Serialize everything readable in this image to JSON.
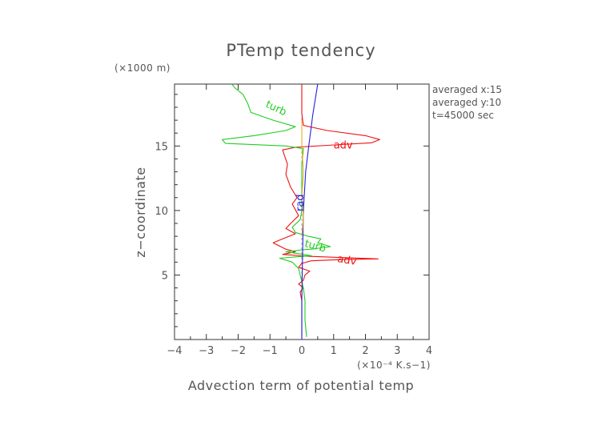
{
  "chart_data": {
    "type": "line",
    "title": "PTemp tendency",
    "xlabel": "Advection term of potential temp",
    "ylabel": "z−coordinate",
    "x_unit_label": "(×10⁻⁴ K.s−1)",
    "y_unit_label": "(×1000 m)",
    "xlim": [
      -4,
      4
    ],
    "ylim": [
      0,
      19.8
    ],
    "x_ticks": [
      -4,
      -3,
      -2,
      -1,
      0,
      1,
      2,
      3,
      4
    ],
    "x_tick_labels": [
      "−4",
      "−3",
      "−2",
      "−1",
      "0",
      "1",
      "2",
      "3",
      "4"
    ],
    "y_ticks": [
      5,
      10,
      15
    ],
    "y_tick_labels": [
      "5",
      "10",
      "15"
    ],
    "info_lines": [
      "averaged  x:15",
      "averaged  y:10",
      "t=45000 sec"
    ],
    "series": [
      {
        "name": "adv",
        "color": "#ee1111",
        "points": [
          [
            0.0,
            0.2
          ],
          [
            0.0,
            1.5
          ],
          [
            0.0,
            3.0
          ],
          [
            -0.05,
            3.7
          ],
          [
            0.05,
            4.0
          ],
          [
            -0.1,
            4.3
          ],
          [
            0.05,
            4.6
          ],
          [
            0.1,
            5.0
          ],
          [
            0.25,
            5.3
          ],
          [
            -0.1,
            5.6
          ],
          [
            0.0,
            5.9
          ],
          [
            0.3,
            6.1
          ],
          [
            1.3,
            6.2
          ],
          [
            2.4,
            6.25
          ],
          [
            1.3,
            6.35
          ],
          [
            0.2,
            6.45
          ],
          [
            -0.6,
            6.6
          ],
          [
            -0.2,
            6.8
          ],
          [
            -0.5,
            7.0
          ],
          [
            -0.9,
            7.5
          ],
          [
            -0.7,
            7.7
          ],
          [
            -0.2,
            8.2
          ],
          [
            -0.5,
            8.6
          ],
          [
            -0.35,
            9.0
          ],
          [
            -0.1,
            9.6
          ],
          [
            -0.3,
            10.5
          ],
          [
            -0.15,
            11.0
          ],
          [
            -0.35,
            11.8
          ],
          [
            -0.5,
            12.8
          ],
          [
            -0.45,
            13.6
          ],
          [
            -0.55,
            14.3
          ],
          [
            -0.6,
            14.7
          ],
          [
            -0.2,
            14.9
          ],
          [
            0.8,
            15.05
          ],
          [
            2.2,
            15.25
          ],
          [
            2.45,
            15.5
          ],
          [
            2.0,
            15.8
          ],
          [
            0.8,
            16.2
          ],
          [
            0.05,
            16.6
          ],
          [
            0.0,
            17.5
          ],
          [
            0.0,
            19.8
          ]
        ]
      },
      {
        "name": "turb",
        "color": "#22cc22",
        "points": [
          [
            0.15,
            0.2
          ],
          [
            0.1,
            1.5
          ],
          [
            0.1,
            3.0
          ],
          [
            0.05,
            4.0
          ],
          [
            0.0,
            4.5
          ],
          [
            -0.1,
            5.5
          ],
          [
            -0.3,
            6.0
          ],
          [
            -0.7,
            6.3
          ],
          [
            0.3,
            6.5
          ],
          [
            -0.5,
            6.8
          ],
          [
            0.0,
            6.95
          ],
          [
            0.3,
            7.0
          ],
          [
            0.9,
            7.2
          ],
          [
            0.5,
            7.5
          ],
          [
            0.6,
            7.8
          ],
          [
            0.2,
            8.0
          ],
          [
            -0.2,
            8.3
          ],
          [
            -0.3,
            8.7
          ],
          [
            -0.05,
            9.3
          ],
          [
            0.0,
            10.0
          ],
          [
            0.0,
            13.5
          ],
          [
            0.05,
            14.8
          ],
          [
            -0.5,
            15.0
          ],
          [
            -2.4,
            15.2
          ],
          [
            -2.5,
            15.5
          ],
          [
            -1.5,
            15.8
          ],
          [
            -0.5,
            16.2
          ],
          [
            -0.2,
            16.5
          ],
          [
            -0.9,
            17.0
          ],
          [
            -1.6,
            17.6
          ],
          [
            -1.7,
            18.3
          ],
          [
            -1.85,
            19.0
          ],
          [
            -2.1,
            19.5
          ],
          [
            -2.2,
            19.8
          ]
        ]
      },
      {
        "name": "rad",
        "color": "#2222dd",
        "points": [
          [
            0.0,
            0.0
          ],
          [
            0.0,
            3.0
          ],
          [
            0.02,
            6.0
          ],
          [
            0.05,
            10.0
          ],
          [
            0.12,
            13.0
          ],
          [
            0.22,
            15.0
          ],
          [
            0.35,
            17.5
          ],
          [
            0.5,
            19.8
          ]
        ]
      },
      {
        "name": "",
        "color": "#eeaa22",
        "points": [
          [
            0.0,
            8.0
          ],
          [
            0.05,
            9.5
          ],
          [
            0.0,
            11.0
          ],
          [
            0.05,
            13.0
          ],
          [
            0.0,
            15.0
          ],
          [
            0.0,
            17.0
          ]
        ]
      }
    ],
    "curve_labels": [
      {
        "text": "turb",
        "series": "turb",
        "x": -0.85,
        "y": 17.7,
        "rotate": 25
      },
      {
        "text": "adv",
        "series": "adv",
        "x": 1.3,
        "y": 14.8,
        "rotate": 0
      },
      {
        "text": "rad",
        "series": "rad",
        "x": 0.05,
        "y": 10.6,
        "rotate": -90
      },
      {
        "text": "turb",
        "series": "turb",
        "x": 0.4,
        "y": 7.0,
        "rotate": 15
      },
      {
        "text": "adv",
        "series": "adv",
        "x": 1.4,
        "y": 5.9,
        "rotate": 10
      }
    ]
  }
}
